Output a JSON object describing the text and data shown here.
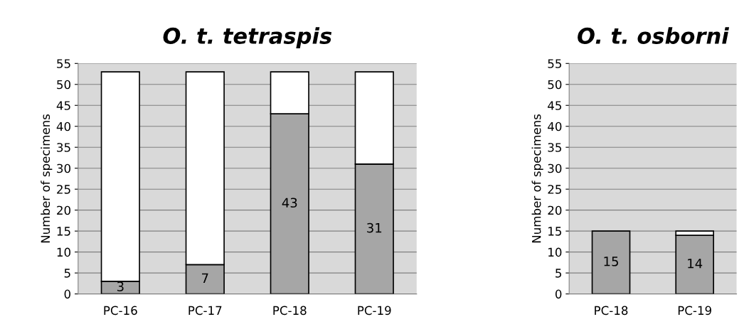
{
  "chart_data": [
    {
      "type": "bar",
      "title": "O. t. tetraspis",
      "ylabel": "Number of specimens",
      "categories": [
        "PC-16",
        "PC-17",
        "PC-18",
        "PC-19"
      ],
      "stacked": true,
      "ylim": [
        0,
        55
      ],
      "yticks": [
        0,
        5,
        10,
        15,
        20,
        25,
        30,
        35,
        40,
        45,
        50,
        55
      ],
      "grid": "y",
      "series": [
        {
          "color": "#a6a6a6",
          "values": [
            3,
            7,
            43,
            31
          ],
          "value_labels": [
            "3",
            "7",
            "43",
            "31"
          ]
        },
        {
          "color": "#ffffff",
          "values": [
            50,
            46,
            10,
            22
          ]
        }
      ]
    },
    {
      "type": "bar",
      "title": "O. t. osborni",
      "ylabel": "Number of specimens",
      "categories": [
        "PC-18",
        "PC-19"
      ],
      "stacked": true,
      "ylim": [
        0,
        55
      ],
      "yticks": [
        0,
        5,
        10,
        15,
        20,
        25,
        30,
        35,
        40,
        45,
        50,
        55
      ],
      "grid": "y",
      "series": [
        {
          "color": "#a6a6a6",
          "values": [
            15,
            14
          ],
          "value_labels": [
            "15",
            "14"
          ]
        },
        {
          "color": "#ffffff",
          "values": [
            null,
            1
          ]
        }
      ]
    }
  ]
}
